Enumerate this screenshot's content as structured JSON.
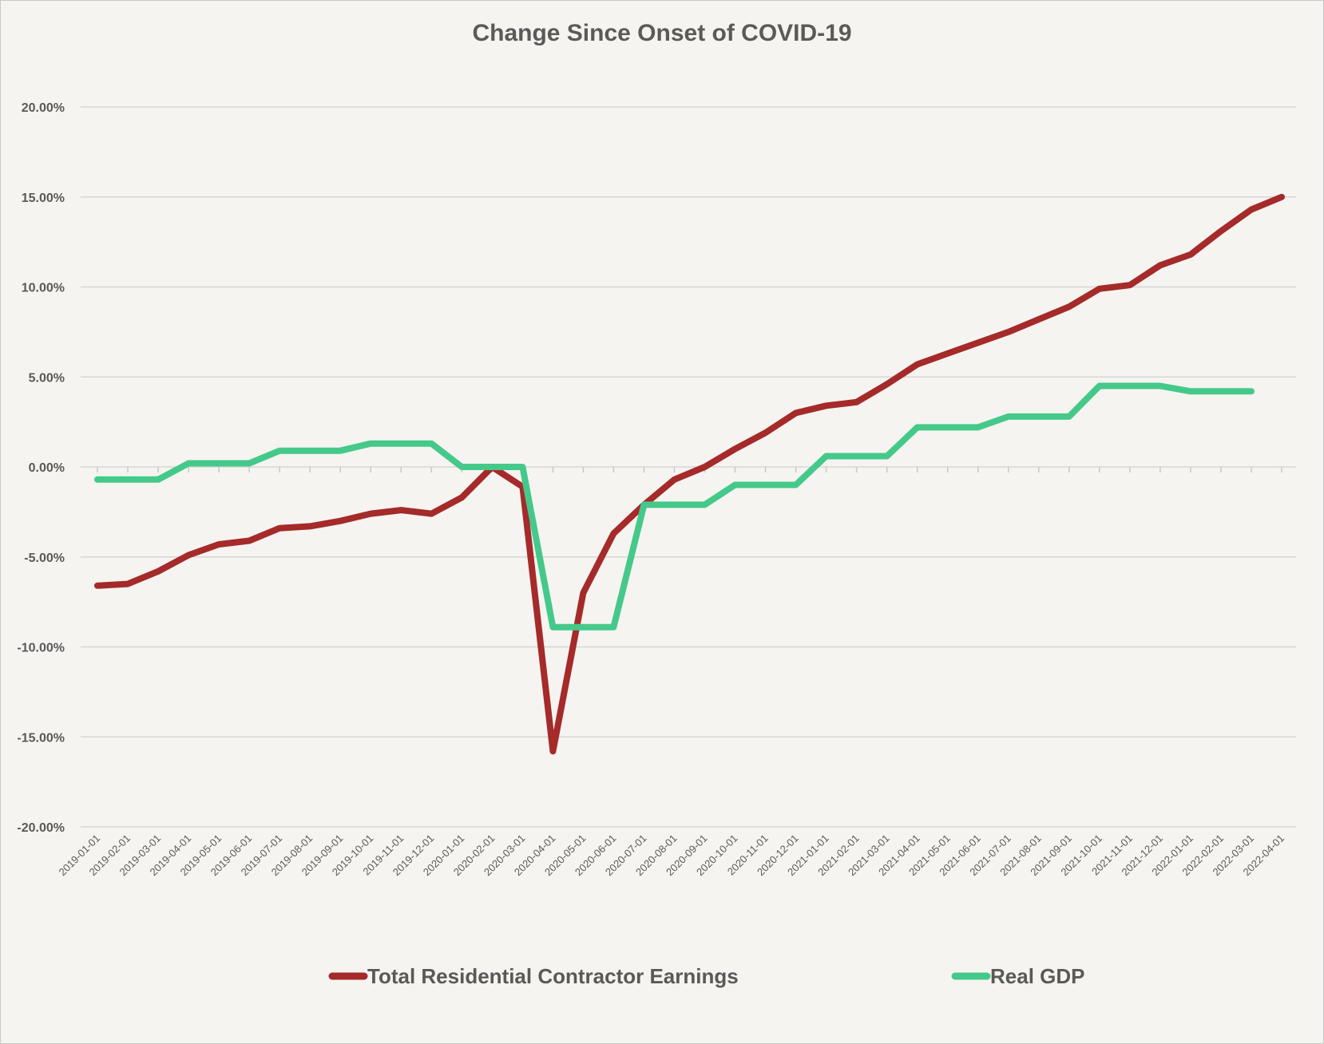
{
  "chart_data": {
    "type": "line",
    "title": "Change Since Onset of COVID-19",
    "xlabel": "",
    "ylabel": "",
    "ylim": [
      -0.2,
      0.2
    ],
    "y_ticks": [
      0.2,
      0.15,
      0.1,
      0.05,
      0.0,
      -0.05,
      -0.1,
      -0.15,
      -0.2
    ],
    "y_tick_labels": [
      "20.00%",
      "15.00%",
      "10.00%",
      "5.00%",
      "0.00%",
      "-5.00%",
      "-10.00%",
      "-15.00%",
      "-20.00%"
    ],
    "grid": true,
    "legend_position": "bottom",
    "x": [
      "2019-01-01",
      "2019-02-01",
      "2019-03-01",
      "2019-04-01",
      "2019-05-01",
      "2019-06-01",
      "2019-07-01",
      "2019-08-01",
      "2019-09-01",
      "2019-10-01",
      "2019-11-01",
      "2019-12-01",
      "2020-01-01",
      "2020-02-01",
      "2020-03-01",
      "2020-04-01",
      "2020-05-01",
      "2020-06-01",
      "2020-07-01",
      "2020-08-01",
      "2020-09-01",
      "2020-10-01",
      "2020-11-01",
      "2020-12-01",
      "2021-01-01",
      "2021-02-01",
      "2021-03-01",
      "2021-04-01",
      "2021-05-01",
      "2021-06-01",
      "2021-07-01",
      "2021-08-01",
      "2021-09-01",
      "2021-10-01",
      "2021-11-01",
      "2021-12-01",
      "2022-01-01",
      "2022-02-01",
      "2022-03-01",
      "2022-04-01"
    ],
    "series": [
      {
        "name": "Total Residential Contractor Earnings",
        "color": "#a52a2a",
        "values": [
          -0.066,
          -0.065,
          -0.058,
          -0.049,
          -0.043,
          -0.041,
          -0.034,
          -0.033,
          -0.03,
          -0.026,
          -0.024,
          -0.026,
          -0.017,
          0.0,
          -0.011,
          -0.158,
          -0.07,
          -0.037,
          -0.021,
          -0.007,
          0.0,
          0.01,
          0.019,
          0.03,
          0.034,
          0.036,
          0.046,
          0.057,
          0.063,
          0.069,
          0.075,
          0.082,
          0.089,
          0.099,
          0.101,
          0.112,
          0.118,
          0.131,
          0.143,
          0.15
        ]
      },
      {
        "name": "Real GDP",
        "color": "#45c98a",
        "values": [
          -0.007,
          -0.007,
          -0.007,
          0.002,
          0.002,
          0.002,
          0.009,
          0.009,
          0.009,
          0.013,
          0.013,
          0.013,
          0.0,
          0.0,
          0.0,
          -0.089,
          -0.089,
          -0.089,
          -0.021,
          -0.021,
          -0.021,
          -0.01,
          -0.01,
          -0.01,
          0.006,
          0.006,
          0.006,
          0.022,
          0.022,
          0.022,
          0.028,
          0.028,
          0.028,
          0.045,
          0.045,
          0.045,
          0.042,
          0.042,
          0.042,
          null
        ]
      }
    ]
  }
}
